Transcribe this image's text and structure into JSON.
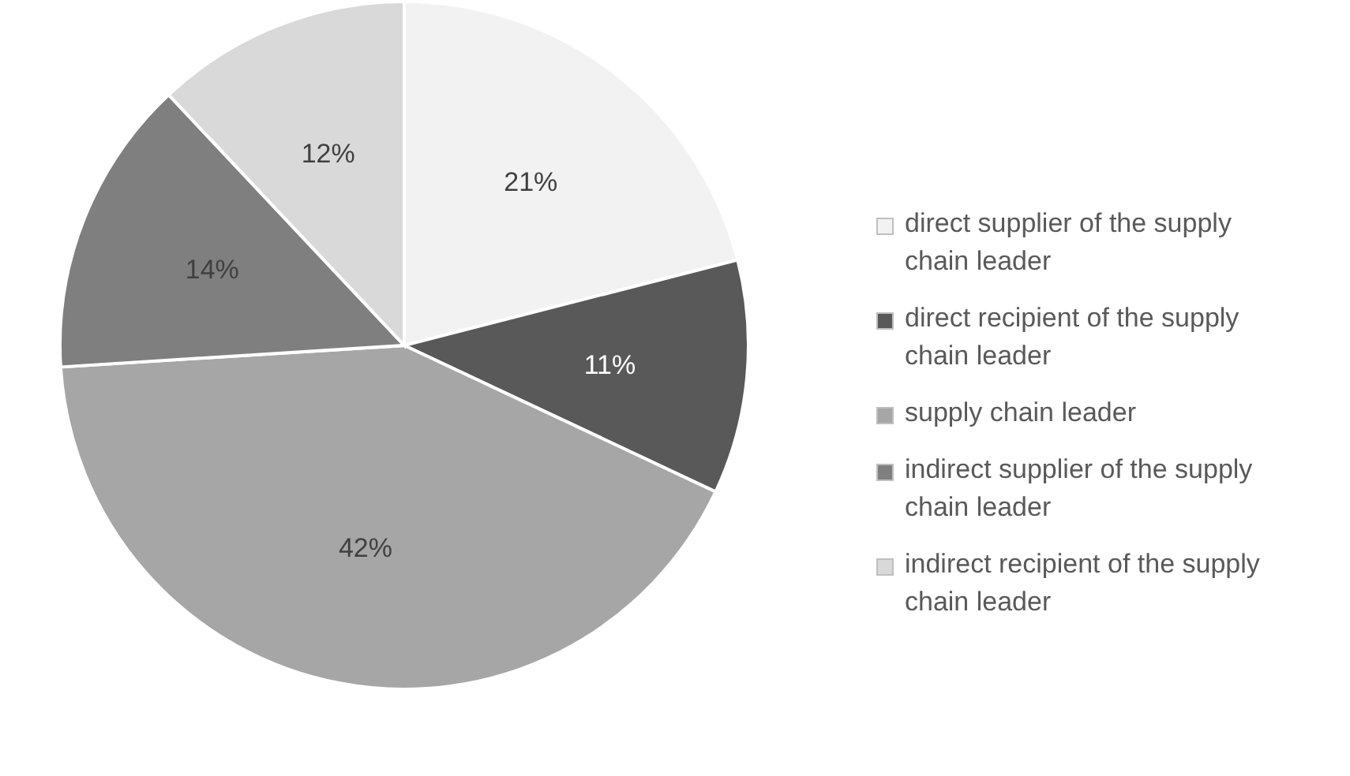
{
  "chart_data": {
    "type": "pie",
    "categories": [
      "direct supplier of the supply chain leader",
      "direct recipient of the supply chain leader",
      "supply chain leader",
      "indirect supplier of the supply chain leader",
      "indirect recipient of the supply chain leader"
    ],
    "values": [
      21,
      11,
      42,
      14,
      12
    ],
    "colors": [
      "#f2f2f2",
      "#595959",
      "#a6a6a6",
      "#7f7f7f",
      "#d9d9d9"
    ],
    "value_labels": [
      "21%",
      "11%",
      "42%",
      "14%",
      "12%"
    ],
    "legend": "right"
  }
}
